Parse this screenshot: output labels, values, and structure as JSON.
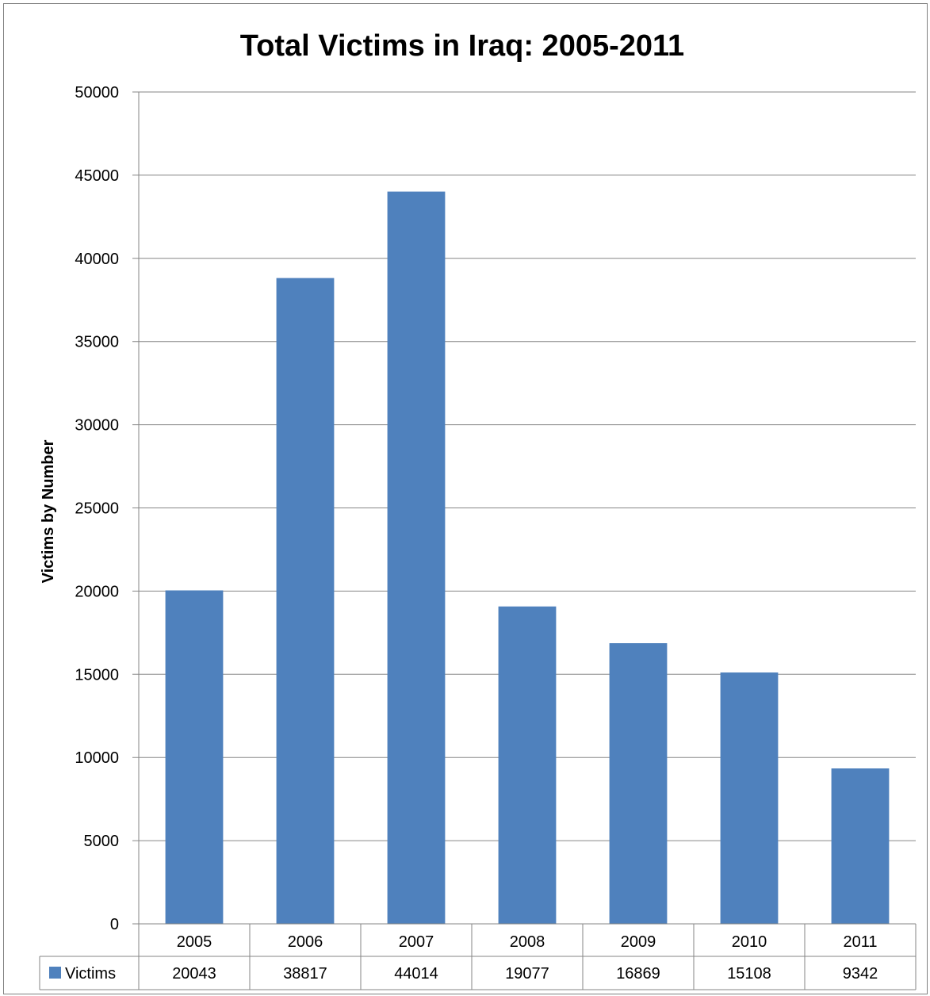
{
  "chart_data": {
    "type": "bar",
    "title": "Total Victims in Iraq: 2005-2011",
    "xlabel": "",
    "ylabel": "Victims by Number",
    "categories": [
      "2005",
      "2006",
      "2007",
      "2008",
      "2009",
      "2010",
      "2011"
    ],
    "series": [
      {
        "name": "Victims",
        "values": [
          20043,
          38817,
          44014,
          19077,
          16869,
          15108,
          9342
        ],
        "color": "#4f81bd"
      }
    ],
    "ylim": [
      0,
      50000
    ],
    "yticks": [
      "0",
      "5000",
      "10000",
      "15000",
      "20000",
      "25000",
      "30000",
      "35000",
      "40000",
      "45000",
      "50000"
    ],
    "grid": true,
    "legend": "data-table"
  }
}
